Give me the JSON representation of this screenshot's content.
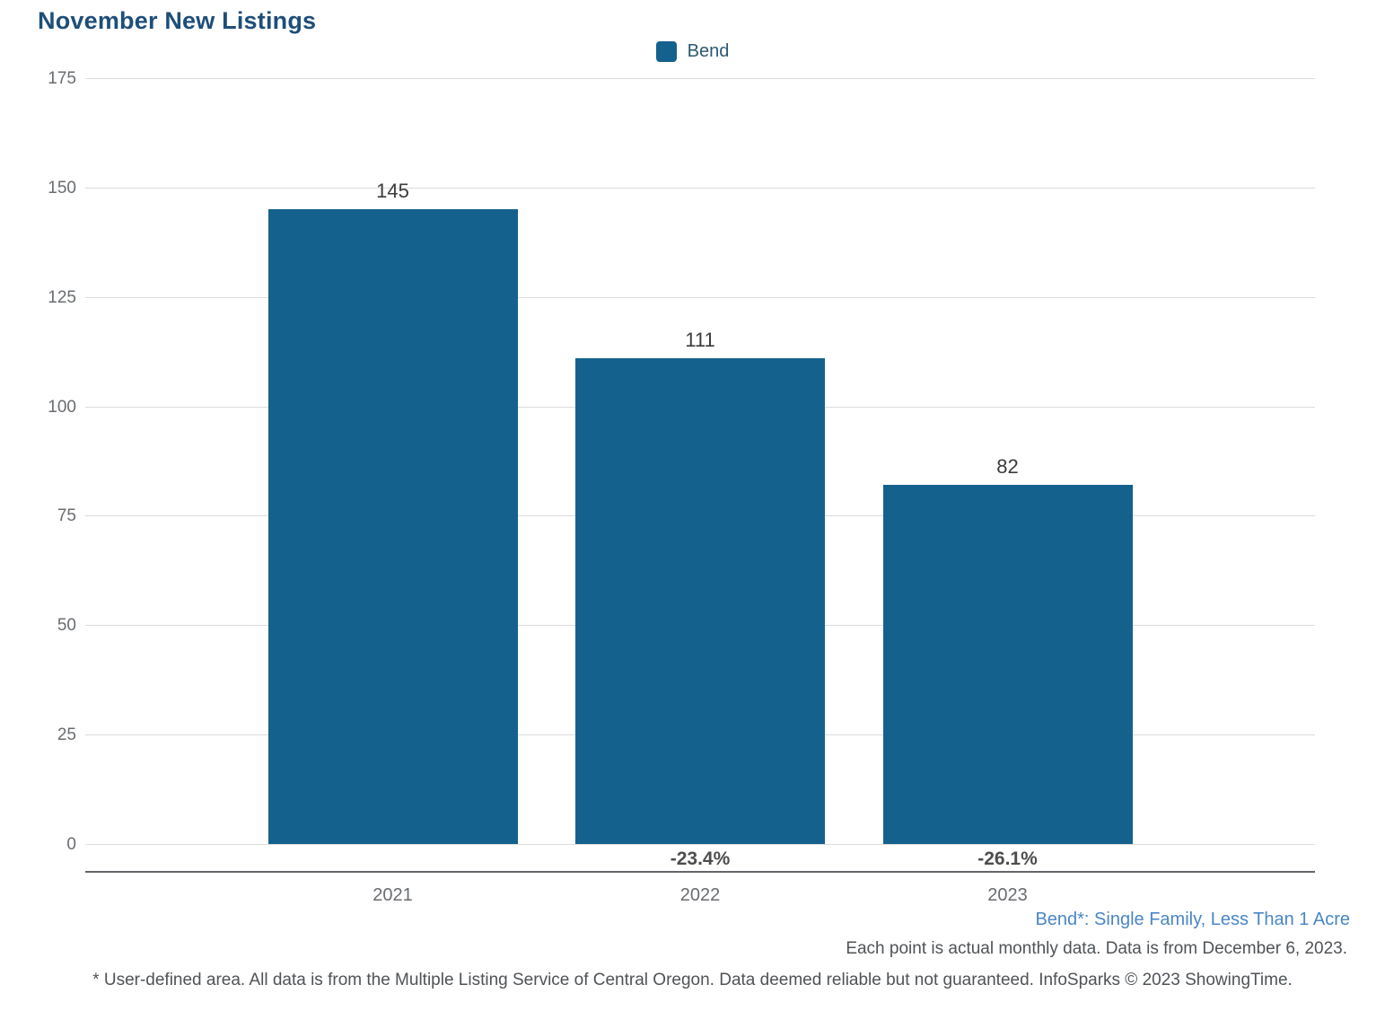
{
  "title": "November New Listings",
  "legend": {
    "label": "Bend",
    "swatch_color": "#14618E"
  },
  "colors": {
    "bar": "#14618E",
    "title_text": "#1E4E79",
    "grid_line": "#DCDCDC",
    "axis_line": "#63666A",
    "tick_label": "#696C70",
    "value_label": "#3B3B3B",
    "pct_label": "#4D4D4D",
    "series_note": "#4A86C5",
    "footnote": "#4F5357"
  },
  "chart_data": {
    "type": "bar",
    "title": "November New Listings",
    "series_name": "Bend",
    "categories": [
      "2021",
      "2022",
      "2023"
    ],
    "values": [
      145,
      111,
      82
    ],
    "value_labels": [
      "145",
      "111",
      "82"
    ],
    "pct_change_labels": [
      "",
      "-23.4%",
      "-26.1%"
    ],
    "xlabel": "",
    "ylabel": "",
    "ylim": [
      0,
      175
    ],
    "yticks": [
      0,
      25,
      50,
      75,
      100,
      125,
      150,
      175
    ],
    "grid": "horizontal",
    "legend_position": "top-center"
  },
  "footnotes": {
    "series_note": "Bend*: Single Family, Less Than 1 Acre",
    "data_note": "Each point is actual monthly data. Data is from December 6, 2023.",
    "disclaimer": "* User-defined area. All data is from the Multiple Listing Service of Central Oregon. Data deemed reliable but not guaranteed. InfoSparks © 2023 ShowingTime."
  }
}
